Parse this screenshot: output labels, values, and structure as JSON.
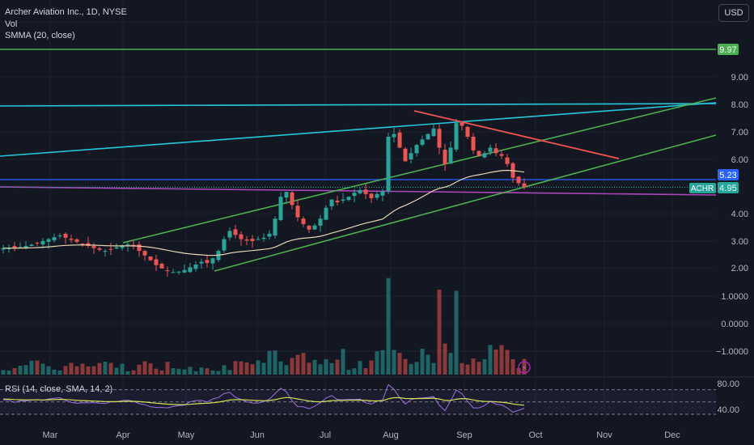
{
  "header": {
    "title": "Archer Aviation Inc., 1D, NYSE",
    "volume_label": "Vol",
    "smma_label": "SMMA (20, close)",
    "currency": "USD"
  },
  "rsi": {
    "label": "RSI (14, close, SMA, 14, 2)",
    "ticks": [
      "80.00",
      "40.00"
    ]
  },
  "colors": {
    "background": "#131722",
    "up": "#26a69a",
    "down": "#ef5350",
    "smma": "#e6d5b0",
    "green_line": "#4caf50",
    "cyan_line": "#26c6da",
    "blue_line": "#2962ff",
    "purple_line": "#ab47bc",
    "red_line": "#ef5350",
    "rsi_line": "#9c6fe0",
    "rsi_ma": "#d4e157"
  },
  "chart_data": {
    "type": "candlestick",
    "symbol": "ACHR",
    "x_labels": [
      "Mar",
      "Apr",
      "May",
      "Jun",
      "Jul",
      "Aug",
      "Sep",
      "Oct",
      "Nov",
      "Dec"
    ],
    "y_ticks": [
      "9.00",
      "8.00",
      "7.00",
      "6.00",
      "5.00",
      "4.00",
      "3.00",
      "2.00",
      "1.0000",
      "0.0000",
      "−1.0000"
    ],
    "price_badges": [
      {
        "label": "9.97",
        "color": "#4caf50"
      },
      {
        "label": "5.23",
        "color": "#2962ff"
      },
      {
        "label": "4.95",
        "color": "#26a69a"
      }
    ],
    "symbol_badge": "ACHR",
    "close_series": [
      2.72,
      2.74,
      2.7,
      2.76,
      2.8,
      2.85,
      2.9,
      2.98,
      3.05,
      3.12,
      3.18,
      3.1,
      3.02,
      2.95,
      2.88,
      2.8,
      2.72,
      2.66,
      2.62,
      2.68,
      2.75,
      2.8,
      2.86,
      2.78,
      2.62,
      2.45,
      2.28,
      2.1,
      1.98,
      1.88,
      1.84,
      1.86,
      1.92,
      2.02,
      2.12,
      2.22,
      2.18,
      2.35,
      2.62,
      3.05,
      3.35,
      3.2,
      3.05,
      3.0,
      2.98,
      3.05,
      3.1,
      3.25,
      3.8,
      4.6,
      4.78,
      4.3,
      3.85,
      3.6,
      3.4,
      3.55,
      3.8,
      4.2,
      4.5,
      4.4,
      4.5,
      4.6,
      4.75,
      4.85,
      4.7,
      4.55,
      4.7,
      4.8,
      6.8,
      6.9,
      6.4,
      5.9,
      6.2,
      6.5,
      6.7,
      6.9,
      7.1,
      6.4,
      5.8,
      6.4,
      7.3,
      7.2,
      6.8,
      6.3,
      6.1,
      6.2,
      6.4,
      6.2,
      6.1,
      5.8,
      5.3,
      5.1,
      4.95
    ],
    "smma20_range": "follows price with 20-period smoothing",
    "volume": "daily bars with spikes in Aug and Sep",
    "rsi_range": [
      30,
      80
    ]
  }
}
